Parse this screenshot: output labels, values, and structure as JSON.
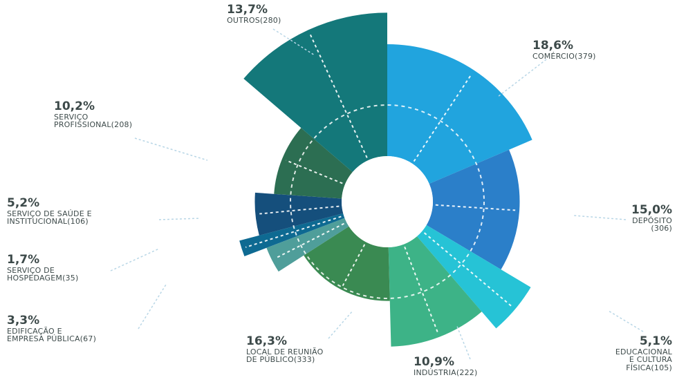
{
  "chart_data": {
    "type": "pie",
    "variant": "sunburst-polar",
    "title": "",
    "slices": [
      {
        "name": "COMÉRCIO",
        "count": 379,
        "percent_label": "18,6%",
        "count_label": "(379)",
        "color": "#21a4de",
        "radius_fraction": 1.0
      },
      {
        "name": "DEPÓSITO",
        "count": 306,
        "percent_label": "15,0%",
        "count_label": "(306)",
        "color": "#2b7fc9",
        "radius_fraction": 0.84
      },
      {
        "name": "EDUCACIONAL E CULTURA FÍSICA",
        "count": 105,
        "percent_label": "5,1%",
        "count_label": "(105)",
        "color": "#26c3d6",
        "radius_fraction": 1.06
      },
      {
        "name": "INDÚSTRIA",
        "count": 222,
        "percent_label": "10,9%",
        "count_label": "(222)",
        "color": "#3db387",
        "radius_fraction": 0.92
      },
      {
        "name": "LOCAL DE REUNIÃO DE PÚBLICO",
        "count": 333,
        "percent_label": "16,3%",
        "count_label": "(333)",
        "color": "#3a8a52",
        "radius_fraction": 0.63
      },
      {
        "name": "EDIFICAÇÃO E EMPRESA PÚBLICA",
        "count": 67,
        "percent_label": "3,3%",
        "count_label": "(67)",
        "color": "#4f9e9a",
        "radius_fraction": 0.82
      },
      {
        "name": "SERVIÇO DE HOSPEDAGEM",
        "count": 35,
        "percent_label": "1,7%",
        "count_label": "(35)",
        "color": "#0e6a92",
        "radius_fraction": 0.97
      },
      {
        "name": "SERVIÇO DE SAÚDE E INSTITUCIONAL",
        "count": 106,
        "percent_label": "5,2%",
        "count_label": "(106)",
        "color": "#154f7c",
        "radius_fraction": 0.84
      },
      {
        "name": "SERVIÇO PROFISSIONAL",
        "count": 208,
        "percent_label": "10,2%",
        "count_label": "(208)",
        "color": "#2c6e52",
        "radius_fraction": 0.72
      },
      {
        "name": "OUTROS",
        "count": 280,
        "percent_label": "13,7%",
        "count_label": "(280)",
        "color": "#14787a",
        "radius_fraction": 1.2
      }
    ]
  },
  "labels": {
    "comercio": {
      "pct": "18,6%",
      "name": "COMÉRCIO(379)"
    },
    "deposito": {
      "pct": "15,0%",
      "name": "DEPÓSITO\n(306)"
    },
    "educacional": {
      "pct": "5,1%",
      "name": "EDUCACIONAL\nE CULTURA\nFÍSICA(105)"
    },
    "industria": {
      "pct": "10,9%",
      "name": "INDÚSTRIA(222)"
    },
    "local": {
      "pct": "16,3%",
      "name": "LOCAL DE REUNIÃO\nDE PÚBLICO(333)"
    },
    "edificacao": {
      "pct": "3,3%",
      "name": "EDIFICAÇÃO E\nEMPRESA PÚBLICA(67)"
    },
    "hospedagem": {
      "pct": "1,7%",
      "name": "SERVIÇO DE\nHOSPEDAGEM(35)"
    },
    "saude": {
      "pct": "5,2%",
      "name": "SERVIÇO DE SAÚDE E\nINSTITUCIONAL(106)"
    },
    "profissional": {
      "pct": "10,2%",
      "name": "SERVIÇO\nPROFISSIONAL(208)"
    },
    "outros": {
      "pct": "13,7%",
      "name": "OUTROS(280)"
    }
  }
}
